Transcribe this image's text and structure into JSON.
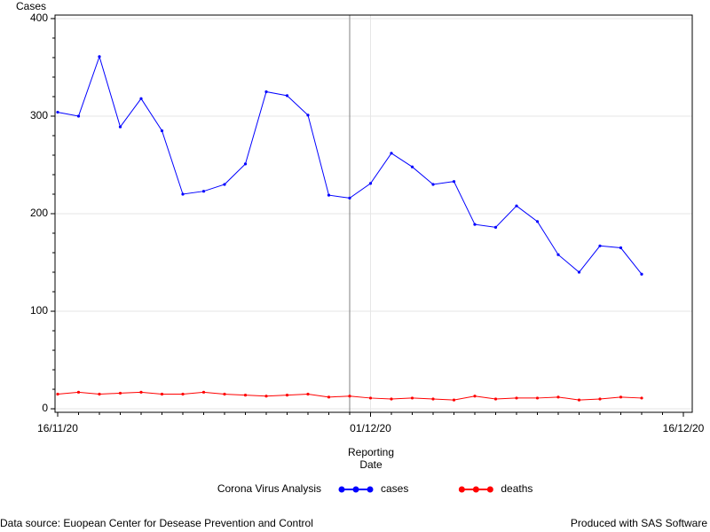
{
  "chart_data": {
    "type": "line",
    "ylabel": "Cases",
    "xlabel": [
      "Reporting",
      "Date"
    ],
    "x": [
      "16/11/20",
      "17/11/20",
      "18/11/20",
      "19/11/20",
      "20/11/20",
      "21/11/20",
      "22/11/20",
      "23/11/20",
      "24/11/20",
      "25/11/20",
      "26/11/20",
      "27/11/20",
      "28/11/20",
      "29/11/20",
      "30/11/20",
      "01/12/20",
      "02/12/20",
      "03/12/20",
      "04/12/20",
      "05/12/20",
      "06/12/20",
      "07/12/20",
      "08/12/20",
      "09/12/20",
      "10/12/20",
      "11/12/20",
      "12/12/20",
      "13/12/20",
      "14/12/20"
    ],
    "series": [
      {
        "name": "cases",
        "color": "#0000ff",
        "values": [
          304,
          300,
          361,
          289,
          318,
          285,
          220,
          223,
          230,
          251,
          325,
          321,
          301,
          219,
          216,
          231,
          262,
          248,
          230,
          233,
          189,
          186,
          208,
          192,
          158,
          140,
          167,
          165,
          138
        ]
      },
      {
        "name": "deaths",
        "color": "#ff0000",
        "values": [
          15,
          17,
          15,
          16,
          17,
          15,
          15,
          17,
          15,
          14,
          13,
          14,
          15,
          12,
          13,
          11,
          10,
          11,
          10,
          9,
          13,
          10,
          11,
          11,
          12,
          9,
          10,
          12,
          11
        ]
      }
    ],
    "xlim": [
      "16/11/20",
      "16/12/20"
    ],
    "xticks": [
      "16/11/20",
      "01/12/20",
      "16/12/20"
    ],
    "ylim": [
      -3.6,
      403.6
    ],
    "yticks": [
      0,
      100,
      200,
      300,
      400
    ],
    "grid": true,
    "reference_line": "30/11/20",
    "legend_title": "Corona Virus Analysis",
    "legend_position": "bottom",
    "footnote_left": "Data source: Euopean Center for Desease Prevention and Control",
    "footnote_right": "Produced with SAS Software"
  }
}
